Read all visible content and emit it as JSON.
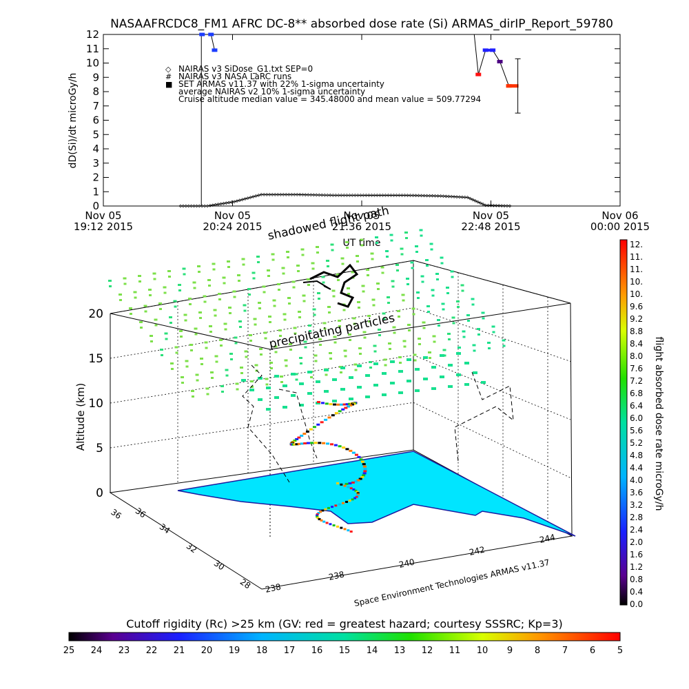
{
  "title": "NASAAFRCDC8_FM1 AFRC DC-8** absorbed dose rate (Si) ARMAS_dirIP_Report_59780",
  "colors": {
    "axis": "#000000",
    "armas_marker": "#1b3cff",
    "ocean_fill": "#00e5ff",
    "grid": "#000000"
  },
  "top_chart": {
    "ylabel": "dD(Si)/dt microGy/h",
    "ylim": [
      0,
      12
    ],
    "yticks": [
      "0",
      "1",
      "2",
      "3",
      "4",
      "5",
      "6",
      "7",
      "8",
      "9",
      "10",
      "11",
      "12"
    ],
    "xticks": [
      {
        "day": "Nov 05",
        "time": "19:12 2015"
      },
      {
        "day": "Nov 05",
        "time": "20:24 2015"
      },
      {
        "day": "Nov 05",
        "time": "21:36 2015"
      },
      {
        "day": "Nov 05",
        "time": "22:48 2015"
      },
      {
        "day": "Nov 06",
        "time": "00:00 2015"
      }
    ],
    "xlabel": "UT time",
    "legend": [
      {
        "symbol": "◇",
        "text": "NAIRAS v3 SiDose_G1.txt SEP=0"
      },
      {
        "symbol": "#",
        "text": "NAIRAS v3 NASA LaRC runs"
      },
      {
        "symbol": "■",
        "text": "SET ARMAS v11.37 with 22% 1-sigma uncertainty"
      },
      {
        "symbol": "",
        "text": "average NAIRAS v2 10% 1-sigma uncertainty"
      },
      {
        "symbol": "",
        "text": "Cruise altitude median value = 345.48000 and mean value = 509.77294"
      }
    ]
  },
  "chart_data": [
    {
      "type": "line",
      "title": "NASAAFRCDC8_FM1 AFRC DC-8** absorbed dose rate (Si) ARMAS_dirIP_Report_59780",
      "xlabel": "UT time",
      "ylabel": "dD(Si)/dt microGy/h",
      "xlim": [
        "2015-11-05 19:12",
        "2015-11-06 00:00"
      ],
      "ylim": [
        0,
        12
      ],
      "series": [
        {
          "name": "NAIRAS v3 SiDose_G1.txt SEP=0",
          "x": [
            "2015-11-05 19:55",
            "2015-11-05 20:10",
            "2015-11-05 20:25",
            "2015-11-05 20:40",
            "2015-11-05 21:00",
            "2015-11-05 21:20",
            "2015-11-05 21:40",
            "2015-11-05 22:00",
            "2015-11-05 22:20",
            "2015-11-05 22:35",
            "2015-11-05 22:45",
            "2015-11-05 23:00"
          ],
          "y": [
            0,
            0,
            0.3,
            0.8,
            0.8,
            0.75,
            0.75,
            0.75,
            0.7,
            0.6,
            0.05,
            0
          ]
        },
        {
          "name": "SET ARMAS v11.37 with 22% 1-sigma uncertainty",
          "x": [
            "2015-11-05 20:07",
            "2015-11-05 20:12",
            "2015-11-05 20:14",
            "2015-11-05 22:41",
            "2015-11-05 22:45",
            "2015-11-05 22:49",
            "2015-11-05 22:53",
            "2015-11-05 22:58"
          ],
          "y": [
            12.0,
            12.0,
            10.9,
            9.2,
            10.9,
            10.9,
            10.1,
            8.4
          ]
        }
      ]
    },
    {
      "type": "scatter",
      "title": "",
      "xlabel": "",
      "ylabel": "Altitude (km)",
      "zticks": [
        "0",
        "5",
        "10",
        "15",
        "20"
      ],
      "lat_ticks": [
        "28",
        "30",
        "32",
        "34",
        "36"
      ],
      "lon_ticks": [
        "238",
        "240",
        "242",
        "244"
      ],
      "annotations": [
        "shadowed flight path",
        "precipitating particles",
        "Space Environment Technologies ARMAS v11.37"
      ]
    }
  ],
  "colorbar_right": {
    "label": "flight absorbed dose rate microGy/h",
    "ticks": [
      "12.",
      "11.",
      "11.",
      "10.",
      "10.",
      "9.6",
      "9.2",
      "8.8",
      "8.4",
      "8.0",
      "7.6",
      "7.2",
      "6.8",
      "6.4",
      "6.0",
      "5.6",
      "5.2",
      "4.8",
      "4.4",
      "4.0",
      "3.6",
      "3.2",
      "2.8",
      "2.4",
      "2.0",
      "1.6",
      "1.2",
      "0.8",
      "0.4",
      "0.0"
    ]
  },
  "colorbar_bottom": {
    "label": "Cutoff rigidity (Rc) >25 km (GV: red = greatest hazard; courtesy SSSRC; Kp=3)",
    "ticks": [
      "25",
      "24",
      "23",
      "22",
      "21",
      "20",
      "19",
      "18",
      "17",
      "16",
      "15",
      "14",
      "13",
      "12",
      "11",
      "10",
      "9",
      "8",
      "7",
      "6",
      "5"
    ]
  },
  "plot3d": {
    "zlabel": "Altitude (km)",
    "zticks": [
      "0",
      "5",
      "10",
      "15",
      "20"
    ],
    "lat_ticks": [
      "28",
      "30",
      "32",
      "34",
      "36"
    ],
    "lon_ticks": [
      "238",
      "240",
      "242",
      "244"
    ],
    "annotation_shadow": "shadowed flight path",
    "annotation_particles": "precipitating particles",
    "credit": "Space Environment Technologies ARMAS v11.37"
  }
}
